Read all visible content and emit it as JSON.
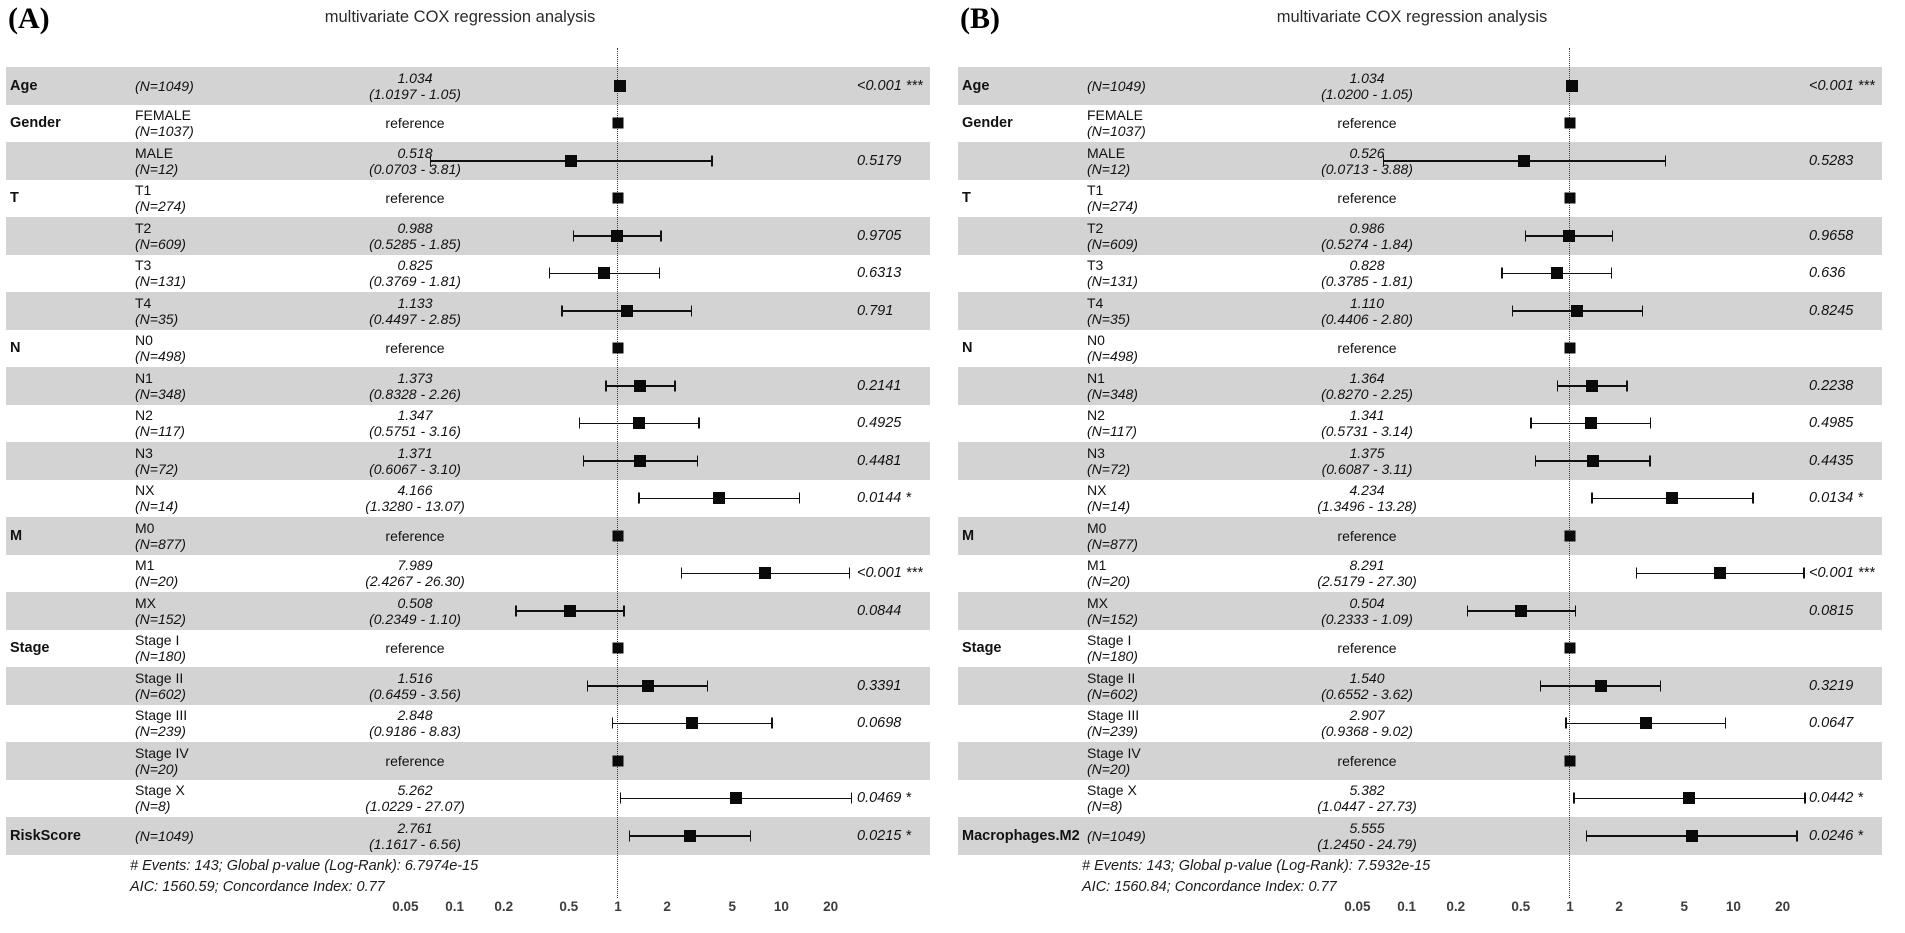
{
  "colors": {
    "row_shade": "#d3d3d3",
    "marker": "#000000",
    "reference_line": "#3a3a3a"
  },
  "chart_data": [
    {
      "type": "forest",
      "panel_label": "(A)",
      "title": "multivariate COX regression analysis",
      "x_scale": "log10",
      "x_ticks": [
        "0.05",
        "0.1",
        "0.2",
        "0.5",
        "1",
        "2",
        "5",
        "10",
        "20"
      ],
      "reference_line": 1,
      "footer": [
        "# Events: 143; Global p-value (Log-Rank): 6.7974e-15",
        "AIC: 1560.59; Concordance Index: 0.77"
      ],
      "rows": [
        {
          "group": "Age",
          "level": "",
          "n": "(N=1049)",
          "reference": false,
          "estimate": 1.034,
          "ci_low": 1.0197,
          "ci_high": 1.05,
          "estimate_label": "1.034",
          "ci_label": "(1.0197 - 1.05)",
          "p": "<0.001",
          "stars": "***"
        },
        {
          "group": "Gender",
          "level": "FEMALE",
          "n": "(N=1037)",
          "reference": true,
          "estimate": 1,
          "estimate_label": "reference",
          "p": "",
          "stars": ""
        },
        {
          "group": "",
          "level": "MALE",
          "n": "(N=12)",
          "reference": false,
          "estimate": 0.518,
          "ci_low": 0.0703,
          "ci_high": 3.81,
          "estimate_label": "0.518",
          "ci_label": "(0.0703 - 3.81)",
          "p": "0.5179",
          "stars": ""
        },
        {
          "group": "T",
          "level": "T1",
          "n": "(N=274)",
          "reference": true,
          "estimate": 1,
          "estimate_label": "reference",
          "p": "",
          "stars": ""
        },
        {
          "group": "",
          "level": "T2",
          "n": "(N=609)",
          "reference": false,
          "estimate": 0.988,
          "ci_low": 0.5285,
          "ci_high": 1.85,
          "estimate_label": "0.988",
          "ci_label": "(0.5285 - 1.85)",
          "p": "0.9705",
          "stars": ""
        },
        {
          "group": "",
          "level": "T3",
          "n": "(N=131)",
          "reference": false,
          "estimate": 0.825,
          "ci_low": 0.3769,
          "ci_high": 1.81,
          "estimate_label": "0.825",
          "ci_label": "(0.3769 - 1.81)",
          "p": "0.6313",
          "stars": ""
        },
        {
          "group": "",
          "level": "T4",
          "n": "(N=35)",
          "reference": false,
          "estimate": 1.133,
          "ci_low": 0.4497,
          "ci_high": 2.85,
          "estimate_label": "1.133",
          "ci_label": "(0.4497 - 2.85)",
          "p": "0.791",
          "stars": ""
        },
        {
          "group": "N",
          "level": "N0",
          "n": "(N=498)",
          "reference": true,
          "estimate": 1,
          "estimate_label": "reference",
          "p": "",
          "stars": ""
        },
        {
          "group": "",
          "level": "N1",
          "n": "(N=348)",
          "reference": false,
          "estimate": 1.373,
          "ci_low": 0.8328,
          "ci_high": 2.26,
          "estimate_label": "1.373",
          "ci_label": "(0.8328 - 2.26)",
          "p": "0.2141",
          "stars": ""
        },
        {
          "group": "",
          "level": "N2",
          "n": "(N=117)",
          "reference": false,
          "estimate": 1.347,
          "ci_low": 0.5751,
          "ci_high": 3.16,
          "estimate_label": "1.347",
          "ci_label": "(0.5751 - 3.16)",
          "p": "0.4925",
          "stars": ""
        },
        {
          "group": "",
          "level": "N3",
          "n": "(N=72)",
          "reference": false,
          "estimate": 1.371,
          "ci_low": 0.6067,
          "ci_high": 3.1,
          "estimate_label": "1.371",
          "ci_label": "(0.6067 - 3.10)",
          "p": "0.4481",
          "stars": ""
        },
        {
          "group": "",
          "level": "NX",
          "n": "(N=14)",
          "reference": false,
          "estimate": 4.166,
          "ci_low": 1.328,
          "ci_high": 13.07,
          "estimate_label": "4.166",
          "ci_label": "(1.3280 - 13.07)",
          "p": "0.0144",
          "stars": "*"
        },
        {
          "group": "M",
          "level": "M0",
          "n": "(N=877)",
          "reference": true,
          "estimate": 1,
          "estimate_label": "reference",
          "p": "",
          "stars": ""
        },
        {
          "group": "",
          "level": "M1",
          "n": "(N=20)",
          "reference": false,
          "estimate": 7.989,
          "ci_low": 2.4267,
          "ci_high": 26.3,
          "estimate_label": "7.989",
          "ci_label": "(2.4267 - 26.30)",
          "p": "<0.001",
          "stars": "***"
        },
        {
          "group": "",
          "level": "MX",
          "n": "(N=152)",
          "reference": false,
          "estimate": 0.508,
          "ci_low": 0.2349,
          "ci_high": 1.1,
          "estimate_label": "0.508",
          "ci_label": "(0.2349 - 1.10)",
          "p": "0.0844",
          "stars": ""
        },
        {
          "group": "Stage",
          "level": "Stage I",
          "n": "(N=180)",
          "reference": true,
          "estimate": 1,
          "estimate_label": "reference",
          "p": "",
          "stars": ""
        },
        {
          "group": "",
          "level": "Stage II",
          "n": "(N=602)",
          "reference": false,
          "estimate": 1.516,
          "ci_low": 0.6459,
          "ci_high": 3.56,
          "estimate_label": "1.516",
          "ci_label": "(0.6459 - 3.56)",
          "p": "0.3391",
          "stars": ""
        },
        {
          "group": "",
          "level": "Stage III",
          "n": "(N=239)",
          "reference": false,
          "estimate": 2.848,
          "ci_low": 0.9186,
          "ci_high": 8.83,
          "estimate_label": "2.848",
          "ci_label": "(0.9186 - 8.83)",
          "p": "0.0698",
          "stars": ""
        },
        {
          "group": "",
          "level": "Stage IV",
          "n": "(N=20)",
          "reference": true,
          "estimate": 1,
          "estimate_label": "reference",
          "p": "",
          "stars": ""
        },
        {
          "group": "",
          "level": "Stage X",
          "n": "(N=8)",
          "reference": false,
          "estimate": 5.262,
          "ci_low": 1.0229,
          "ci_high": 27.07,
          "estimate_label": "5.262",
          "ci_label": "(1.0229 - 27.07)",
          "p": "0.0469",
          "stars": "*"
        },
        {
          "group": "RiskScore",
          "level": "",
          "n": "(N=1049)",
          "reference": false,
          "estimate": 2.761,
          "ci_low": 1.1617,
          "ci_high": 6.56,
          "estimate_label": "2.761",
          "ci_label": "(1.1617 -  6.56)",
          "p": "0.0215",
          "stars": "*"
        }
      ]
    },
    {
      "type": "forest",
      "panel_label": "(B)",
      "title": "multivariate COX regression analysis",
      "x_scale": "log10",
      "x_ticks": [
        "0.05",
        "0.1",
        "0.2",
        "0.5",
        "1",
        "2",
        "5",
        "10",
        "20"
      ],
      "reference_line": 1,
      "footer": [
        "# Events: 143; Global p-value (Log-Rank): 7.5932e-15",
        "AIC: 1560.84; Concordance Index: 0.77"
      ],
      "rows": [
        {
          "group": "Age",
          "level": "",
          "n": "(N=1049)",
          "reference": false,
          "estimate": 1.034,
          "ci_low": 1.02,
          "ci_high": 1.05,
          "estimate_label": "1.034",
          "ci_label": "(1.0200 - 1.05)",
          "p": "<0.001",
          "stars": "***"
        },
        {
          "group": "Gender",
          "level": "FEMALE",
          "n": "(N=1037)",
          "reference": true,
          "estimate": 1,
          "estimate_label": "reference",
          "p": "",
          "stars": ""
        },
        {
          "group": "",
          "level": "MALE",
          "n": "(N=12)",
          "reference": false,
          "estimate": 0.526,
          "ci_low": 0.0713,
          "ci_high": 3.88,
          "estimate_label": "0.526",
          "ci_label": "(0.0713 - 3.88)",
          "p": "0.5283",
          "stars": ""
        },
        {
          "group": "T",
          "level": "T1",
          "n": "(N=274)",
          "reference": true,
          "estimate": 1,
          "estimate_label": "reference",
          "p": "",
          "stars": ""
        },
        {
          "group": "",
          "level": "T2",
          "n": "(N=609)",
          "reference": false,
          "estimate": 0.986,
          "ci_low": 0.5274,
          "ci_high": 1.84,
          "estimate_label": "0.986",
          "ci_label": "(0.5274 - 1.84)",
          "p": "0.9658",
          "stars": ""
        },
        {
          "group": "",
          "level": "T3",
          "n": "(N=131)",
          "reference": false,
          "estimate": 0.828,
          "ci_low": 0.3785,
          "ci_high": 1.81,
          "estimate_label": "0.828",
          "ci_label": "(0.3785 - 1.81)",
          "p": "0.636",
          "stars": ""
        },
        {
          "group": "",
          "level": "T4",
          "n": "(N=35)",
          "reference": false,
          "estimate": 1.11,
          "ci_low": 0.4406,
          "ci_high": 2.8,
          "estimate_label": "1.110",
          "ci_label": "(0.4406 - 2.80)",
          "p": "0.8245",
          "stars": ""
        },
        {
          "group": "N",
          "level": "N0",
          "n": "(N=498)",
          "reference": true,
          "estimate": 1,
          "estimate_label": "reference",
          "p": "",
          "stars": ""
        },
        {
          "group": "",
          "level": "N1",
          "n": "(N=348)",
          "reference": false,
          "estimate": 1.364,
          "ci_low": 0.827,
          "ci_high": 2.25,
          "estimate_label": "1.364",
          "ci_label": "(0.8270 - 2.25)",
          "p": "0.2238",
          "stars": ""
        },
        {
          "group": "",
          "level": "N2",
          "n": "(N=117)",
          "reference": false,
          "estimate": 1.341,
          "ci_low": 0.5731,
          "ci_high": 3.14,
          "estimate_label": "1.341",
          "ci_label": "(0.5731 - 3.14)",
          "p": "0.4985",
          "stars": ""
        },
        {
          "group": "",
          "level": "N3",
          "n": "(N=72)",
          "reference": false,
          "estimate": 1.375,
          "ci_low": 0.6087,
          "ci_high": 3.11,
          "estimate_label": "1.375",
          "ci_label": "(0.6087 - 3.11)",
          "p": "0.4435",
          "stars": ""
        },
        {
          "group": "",
          "level": "NX",
          "n": "(N=14)",
          "reference": false,
          "estimate": 4.234,
          "ci_low": 1.3496,
          "ci_high": 13.28,
          "estimate_label": "4.234",
          "ci_label": "(1.3496 - 13.28)",
          "p": "0.0134",
          "stars": "*"
        },
        {
          "group": "M",
          "level": "M0",
          "n": "(N=877)",
          "reference": true,
          "estimate": 1,
          "estimate_label": "reference",
          "p": "",
          "stars": ""
        },
        {
          "group": "",
          "level": "M1",
          "n": "(N=20)",
          "reference": false,
          "estimate": 8.291,
          "ci_low": 2.5179,
          "ci_high": 27.3,
          "estimate_label": "8.291",
          "ci_label": "(2.5179 - 27.30)",
          "p": "<0.001",
          "stars": "***"
        },
        {
          "group": "",
          "level": "MX",
          "n": "(N=152)",
          "reference": false,
          "estimate": 0.504,
          "ci_low": 0.2333,
          "ci_high": 1.09,
          "estimate_label": "0.504",
          "ci_label": "(0.2333 - 1.09)",
          "p": "0.0815",
          "stars": ""
        },
        {
          "group": "Stage",
          "level": "Stage I",
          "n": "(N=180)",
          "reference": true,
          "estimate": 1,
          "estimate_label": "reference",
          "p": "",
          "stars": ""
        },
        {
          "group": "",
          "level": "Stage II",
          "n": "(N=602)",
          "reference": false,
          "estimate": 1.54,
          "ci_low": 0.6552,
          "ci_high": 3.62,
          "estimate_label": "1.540",
          "ci_label": "(0.6552 -  3.62)",
          "p": "0.3219",
          "stars": ""
        },
        {
          "group": "",
          "level": "Stage III",
          "n": "(N=239)",
          "reference": false,
          "estimate": 2.907,
          "ci_low": 0.9368,
          "ci_high": 9.02,
          "estimate_label": "2.907",
          "ci_label": "(0.9368 -  9.02)",
          "p": "0.0647",
          "stars": ""
        },
        {
          "group": "",
          "level": "Stage IV",
          "n": "(N=20)",
          "reference": true,
          "estimate": 1,
          "estimate_label": "reference",
          "p": "",
          "stars": ""
        },
        {
          "group": "",
          "level": "Stage X",
          "n": "(N=8)",
          "reference": false,
          "estimate": 5.382,
          "ci_low": 1.0447,
          "ci_high": 27.73,
          "estimate_label": "5.382",
          "ci_label": "(1.0447 - 27.73)",
          "p": "0.0442",
          "stars": "*"
        },
        {
          "group": "Macrophages.M2",
          "level": "",
          "n": "(N=1049)",
          "reference": false,
          "estimate": 5.555,
          "ci_low": 1.245,
          "ci_high": 24.79,
          "estimate_label": "5.555",
          "ci_label": "(1.2450 - 24.79)",
          "p": "0.0246",
          "stars": "*"
        }
      ]
    }
  ]
}
